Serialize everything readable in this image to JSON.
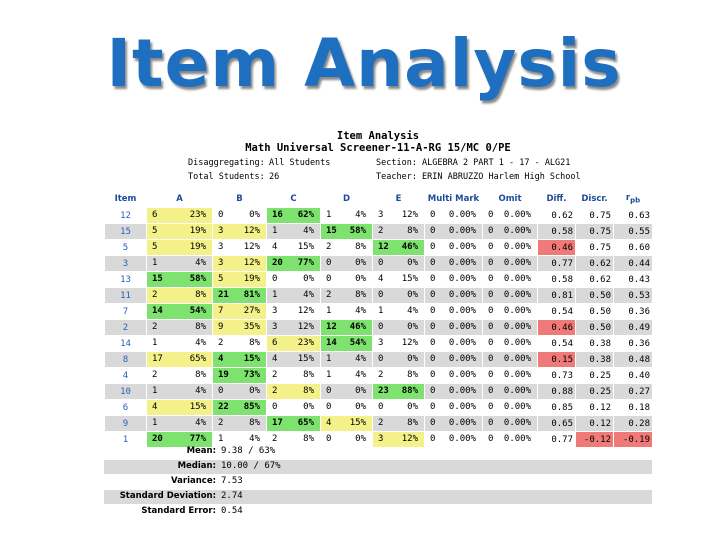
{
  "slide_title": "Item Analysis",
  "report": {
    "title": "Item Analysis",
    "subtitle": "Math Universal Screener-11-A-RG 15/MC 0/PE",
    "disaggregating_label": "Disaggregating:",
    "disaggregating_value": "All Students",
    "section_label": "Section:",
    "section_value": "ALGEBRA 2 PART 1 - 17 - ALG21",
    "total_label": "Total Students:",
    "total_value": "26",
    "teacher_label": "Teacher:",
    "teacher_value": "ERIN ABRUZZO Harlem High School"
  },
  "columns": [
    "Item",
    "A",
    "B",
    "C",
    "D",
    "E",
    "Multi Mark",
    "Omit",
    "Diff.",
    "Discr.",
    "r"
  ],
  "columns_sub": "pb",
  "rows": [
    {
      "item": "12",
      "A": [
        "6",
        "23%"
      ],
      "B": [
        "0",
        "0%"
      ],
      "C": [
        "16",
        "62%"
      ],
      "D": [
        "1",
        "4%"
      ],
      "E": [
        "3",
        "12%"
      ],
      "mm": [
        "0",
        "0.00%"
      ],
      "omit": [
        "0",
        "0.00%"
      ],
      "diff": "0.62",
      "discr": "0.75",
      "rpb": "0.63",
      "hl": {
        "A": "y",
        "C": "g"
      }
    },
    {
      "item": "15",
      "A": [
        "5",
        "19%"
      ],
      "B": [
        "3",
        "12%"
      ],
      "C": [
        "1",
        "4%"
      ],
      "D": [
        "15",
        "58%"
      ],
      "E": [
        "2",
        "8%"
      ],
      "mm": [
        "0",
        "0.00%"
      ],
      "omit": [
        "0",
        "0.00%"
      ],
      "diff": "0.58",
      "discr": "0.75",
      "rpb": "0.55",
      "hl": {
        "A": "y",
        "B": "y",
        "D": "g"
      }
    },
    {
      "item": "5",
      "A": [
        "5",
        "19%"
      ],
      "B": [
        "3",
        "12%"
      ],
      "C": [
        "4",
        "15%"
      ],
      "D": [
        "2",
        "8%"
      ],
      "E": [
        "12",
        "46%"
      ],
      "mm": [
        "0",
        "0.00%"
      ],
      "omit": [
        "0",
        "0.00%"
      ],
      "diff": "0.46",
      "discr": "0.75",
      "rpb": "0.60",
      "hl": {
        "A": "y",
        "E": "g",
        "diff": "r"
      }
    },
    {
      "item": "3",
      "A": [
        "1",
        "4%"
      ],
      "B": [
        "3",
        "12%"
      ],
      "C": [
        "20",
        "77%"
      ],
      "D": [
        "0",
        "0%"
      ],
      "E": [
        "0",
        "0%"
      ],
      "mm": [
        "0",
        "0.00%"
      ],
      "omit": [
        "0",
        "0.00%"
      ],
      "diff": "0.77",
      "discr": "0.62",
      "rpb": "0.44",
      "hl": {
        "B": "y",
        "C": "g"
      }
    },
    {
      "item": "13",
      "A": [
        "15",
        "58%"
      ],
      "B": [
        "5",
        "19%"
      ],
      "C": [
        "0",
        "0%"
      ],
      "D": [
        "0",
        "0%"
      ],
      "E": [
        "4",
        "15%"
      ],
      "mm": [
        "0",
        "0.00%"
      ],
      "omit": [
        "0",
        "0.00%"
      ],
      "diff": "0.58",
      "discr": "0.62",
      "rpb": "0.43",
      "hl": {
        "A": "g",
        "B": "y"
      }
    },
    {
      "item": "11",
      "A": [
        "2",
        "8%"
      ],
      "B": [
        "21",
        "81%"
      ],
      "C": [
        "1",
        "4%"
      ],
      "D": [
        "2",
        "8%"
      ],
      "E": [
        "0",
        "0%"
      ],
      "mm": [
        "0",
        "0.00%"
      ],
      "omit": [
        "0",
        "0.00%"
      ],
      "diff": "0.81",
      "discr": "0.50",
      "rpb": "0.53",
      "hl": {
        "A": "y",
        "B": "g"
      }
    },
    {
      "item": "7",
      "A": [
        "14",
        "54%"
      ],
      "B": [
        "7",
        "27%"
      ],
      "C": [
        "3",
        "12%"
      ],
      "D": [
        "1",
        "4%"
      ],
      "E": [
        "1",
        "4%"
      ],
      "mm": [
        "0",
        "0.00%"
      ],
      "omit": [
        "0",
        "0.00%"
      ],
      "diff": "0.54",
      "discr": "0.50",
      "rpb": "0.36",
      "hl": {
        "A": "g",
        "B": "y"
      }
    },
    {
      "item": "2",
      "A": [
        "2",
        "8%"
      ],
      "B": [
        "9",
        "35%"
      ],
      "C": [
        "3",
        "12%"
      ],
      "D": [
        "12",
        "46%"
      ],
      "E": [
        "0",
        "0%"
      ],
      "mm": [
        "0",
        "0.00%"
      ],
      "omit": [
        "0",
        "0.00%"
      ],
      "diff": "0.46",
      "discr": "0.50",
      "rpb": "0.49",
      "hl": {
        "B": "y",
        "D": "g",
        "diff": "r"
      }
    },
    {
      "item": "14",
      "A": [
        "1",
        "4%"
      ],
      "B": [
        "2",
        "8%"
      ],
      "C": [
        "6",
        "23%"
      ],
      "D": [
        "14",
        "54%"
      ],
      "E": [
        "3",
        "12%"
      ],
      "mm": [
        "0",
        "0.00%"
      ],
      "omit": [
        "0",
        "0.00%"
      ],
      "diff": "0.54",
      "discr": "0.38",
      "rpb": "0.36",
      "hl": {
        "C": "y",
        "D": "g"
      }
    },
    {
      "item": "8",
      "A": [
        "17",
        "65%"
      ],
      "B": [
        "4",
        "15%"
      ],
      "C": [
        "4",
        "15%"
      ],
      "D": [
        "1",
        "4%"
      ],
      "E": [
        "0",
        "0%"
      ],
      "mm": [
        "0",
        "0.00%"
      ],
      "omit": [
        "0",
        "0.00%"
      ],
      "diff": "0.15",
      "discr": "0.38",
      "rpb": "0.48",
      "hl": {
        "A": "y",
        "B": "g",
        "diff": "r"
      }
    },
    {
      "item": "4",
      "A": [
        "2",
        "8%"
      ],
      "B": [
        "19",
        "73%"
      ],
      "C": [
        "2",
        "8%"
      ],
      "D": [
        "1",
        "4%"
      ],
      "E": [
        "2",
        "8%"
      ],
      "mm": [
        "0",
        "0.00%"
      ],
      "omit": [
        "0",
        "0.00%"
      ],
      "diff": "0.73",
      "discr": "0.25",
      "rpb": "0.40",
      "hl": {
        "B": "g"
      }
    },
    {
      "item": "10",
      "A": [
        "1",
        "4%"
      ],
      "B": [
        "0",
        "0%"
      ],
      "C": [
        "2",
        "8%"
      ],
      "D": [
        "0",
        "0%"
      ],
      "E": [
        "23",
        "88%"
      ],
      "mm": [
        "0",
        "0.00%"
      ],
      "omit": [
        "0",
        "0.00%"
      ],
      "diff": "0.88",
      "discr": "0.25",
      "rpb": "0.27",
      "hl": {
        "C": "y",
        "E": "g"
      }
    },
    {
      "item": "6",
      "A": [
        "4",
        "15%"
      ],
      "B": [
        "22",
        "85%"
      ],
      "C": [
        "0",
        "0%"
      ],
      "D": [
        "0",
        "0%"
      ],
      "E": [
        "0",
        "0%"
      ],
      "mm": [
        "0",
        "0.00%"
      ],
      "omit": [
        "0",
        "0.00%"
      ],
      "diff": "0.85",
      "discr": "0.12",
      "rpb": "0.18",
      "hl": {
        "A": "y",
        "B": "g"
      }
    },
    {
      "item": "9",
      "A": [
        "1",
        "4%"
      ],
      "B": [
        "2",
        "8%"
      ],
      "C": [
        "17",
        "65%"
      ],
      "D": [
        "4",
        "15%"
      ],
      "E": [
        "2",
        "8%"
      ],
      "mm": [
        "0",
        "0.00%"
      ],
      "omit": [
        "0",
        "0.00%"
      ],
      "diff": "0.65",
      "discr": "0.12",
      "rpb": "0.28",
      "hl": {
        "C": "g",
        "D": "y"
      }
    },
    {
      "item": "1",
      "A": [
        "20",
        "77%"
      ],
      "B": [
        "1",
        "4%"
      ],
      "C": [
        "2",
        "8%"
      ],
      "D": [
        "0",
        "0%"
      ],
      "E": [
        "3",
        "12%"
      ],
      "mm": [
        "0",
        "0.00%"
      ],
      "omit": [
        "0",
        "0.00%"
      ],
      "diff": "0.77",
      "discr": "-0.12",
      "rpb": "-0.19",
      "hl": {
        "A": "g",
        "E": "y",
        "discr": "r",
        "rpb": "r"
      }
    }
  ],
  "stats": [
    {
      "label": "Mean:",
      "value": "9.38 / 63%"
    },
    {
      "label": "Median:",
      "value": "10.00 / 67%"
    },
    {
      "label": "Variance:",
      "value": "7.53"
    },
    {
      "label": "Standard Deviation:",
      "value": "2.74"
    },
    {
      "label": "Standard Error:",
      "value": "0.54"
    }
  ],
  "colors": {
    "title": "#1f6fc0",
    "header": "#1e4a9a",
    "item": "#2a5cc0",
    "yellow": "#f4f08a",
    "green": "#7ee26e",
    "red": "#f07a78",
    "grey_row": "#d9d9d9"
  }
}
